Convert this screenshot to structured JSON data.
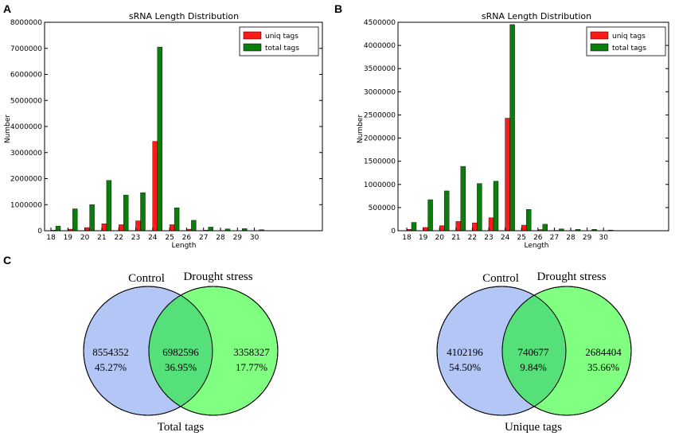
{
  "panel_labels": {
    "a": "A",
    "b": "B",
    "c": "C"
  },
  "colors": {
    "uniq": "#ff1a1a",
    "total": "#0a7d0a",
    "control": "#b3c6f5",
    "drought": "#80ff80",
    "overlap": "#55e07a"
  },
  "chart_data": [
    {
      "type": "bar",
      "title": "sRNA Length Distribution",
      "xlabel": "Length",
      "ylabel": "Number",
      "categories": [
        "18",
        "19",
        "20",
        "21",
        "22",
        "23",
        "24",
        "25",
        "26",
        "27",
        "28",
        "29",
        "30"
      ],
      "ylim": [
        0,
        8000000
      ],
      "yticks": [
        "0",
        "1000000",
        "2000000",
        "3000000",
        "4000000",
        "5000000",
        "6000000",
        "7000000",
        "8000000"
      ],
      "legend": "top-right",
      "series": [
        {
          "name": "uniq tags",
          "values": [
            20000,
            60000,
            120000,
            270000,
            230000,
            380000,
            3430000,
            230000,
            60000,
            20000,
            10000,
            5000,
            3000
          ]
        },
        {
          "name": "total tags",
          "values": [
            180000,
            840000,
            1000000,
            1930000,
            1370000,
            1460000,
            7050000,
            880000,
            400000,
            140000,
            70000,
            80000,
            40000
          ]
        }
      ]
    },
    {
      "type": "bar",
      "title": "sRNA Length Distribution",
      "xlabel": "Length",
      "ylabel": "Number",
      "categories": [
        "18",
        "19",
        "20",
        "21",
        "22",
        "23",
        "24",
        "25",
        "26",
        "27",
        "28",
        "29",
        "30"
      ],
      "ylim": [
        0,
        4500000
      ],
      "yticks": [
        "0",
        "500000",
        "1000000",
        "1500000",
        "2000000",
        "2500000",
        "3000000",
        "3500000",
        "4000000",
        "4500000"
      ],
      "legend": "top-right",
      "series": [
        {
          "name": "uniq tags",
          "values": [
            30000,
            70000,
            110000,
            200000,
            170000,
            280000,
            2430000,
            120000,
            25000,
            8000,
            5000,
            4000,
            2000
          ]
        },
        {
          "name": "total tags",
          "values": [
            180000,
            670000,
            860000,
            1390000,
            1020000,
            1070000,
            4450000,
            460000,
            140000,
            40000,
            30000,
            30000,
            15000
          ]
        }
      ]
    }
  ],
  "venn": [
    {
      "left_label": "Control",
      "right_label": "Drought stress",
      "caption": "Total tags",
      "left_count": "8554352",
      "left_pct": "45.27%",
      "mid_count": "6982596",
      "mid_pct": "36.95%",
      "right_count": "3358327",
      "right_pct": "17.77%"
    },
    {
      "left_label": "Control",
      "right_label": "Drought stress",
      "caption": "Unique tags",
      "left_count": "4102196",
      "left_pct": "54.50%",
      "mid_count": "740677",
      "mid_pct": "9.84%",
      "right_count": "2684404",
      "right_pct": "35.66%"
    }
  ]
}
